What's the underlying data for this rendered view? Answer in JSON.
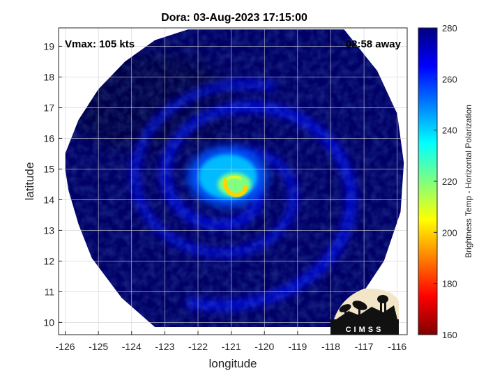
{
  "chart_data": {
    "type": "heatmap",
    "title": "Dora: 03-Aug-2023 17:15:00",
    "annotations": {
      "vmax": "Vmax: 105 kts",
      "time_away": "02:58 away"
    },
    "xlabel": "longitude",
    "ylabel": "latitude",
    "xlim": [
      -126.2,
      -115.7
    ],
    "ylim": [
      9.6,
      19.6
    ],
    "xticks": [
      -126,
      -125,
      -124,
      -123,
      -122,
      -121,
      -120,
      -119,
      -118,
      -117,
      -116
    ],
    "yticks": [
      10,
      11,
      12,
      13,
      14,
      15,
      16,
      17,
      18,
      19
    ],
    "grid": true,
    "colorbar": {
      "label": "Brightness Temp - Horizontal Polarization",
      "range": [
        160,
        280
      ],
      "ticks": [
        160,
        180,
        200,
        220,
        240,
        260,
        280
      ],
      "colormap": "jet"
    },
    "storm_center": {
      "lon": -120.9,
      "lat": 14.45
    },
    "swath_outline": [
      [
        -126.0,
        15.5
      ],
      [
        -125.6,
        16.6
      ],
      [
        -125.0,
        17.6
      ],
      [
        -124.2,
        18.5
      ],
      [
        -123.3,
        19.2
      ],
      [
        -122.3,
        19.55
      ],
      [
        -117.6,
        19.55
      ],
      [
        -116.6,
        18.2
      ],
      [
        -116.0,
        16.8
      ],
      [
        -115.8,
        15.2
      ],
      [
        -115.9,
        13.6
      ],
      [
        -116.4,
        12.0
      ],
      [
        -117.2,
        10.7
      ],
      [
        -118.0,
        9.85
      ],
      [
        -123.3,
        9.85
      ],
      [
        -124.3,
        10.8
      ],
      [
        -125.2,
        12.1
      ],
      [
        -125.6,
        13.2
      ],
      [
        -125.9,
        14.3
      ],
      [
        -126.0,
        15.0
      ]
    ],
    "field": {
      "background_temp": 268,
      "features": [
        {
          "kind": "central_cold_cloud",
          "lon": -121.1,
          "lat": 14.75,
          "temp": 228
        },
        {
          "kind": "eyewall_ring",
          "lon": -120.9,
          "lat": 14.45,
          "temp": 185
        },
        {
          "kind": "rain_band",
          "temp": 248
        },
        {
          "kind": "warm_sector",
          "lon": -123.5,
          "lat": 17.2,
          "temp": 274
        }
      ]
    }
  },
  "logo": {
    "text": "CIMSS"
  }
}
